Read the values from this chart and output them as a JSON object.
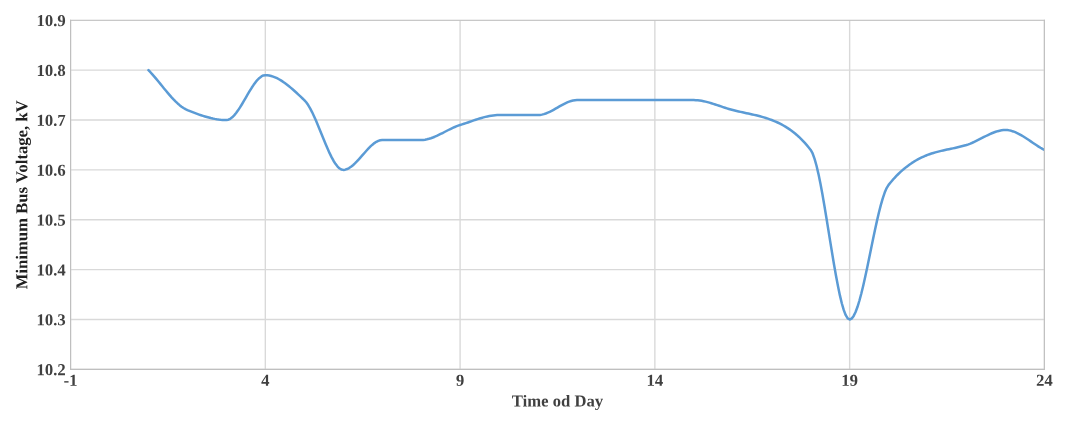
{
  "chart_data": {
    "type": "line",
    "xlabel": "Time od Day",
    "ylabel": "Minimum Bus Voltage, kV",
    "x": [
      1,
      2,
      3,
      4,
      5,
      6,
      7,
      8,
      9,
      10,
      11,
      12,
      13,
      14,
      15,
      16,
      17,
      18,
      19,
      20,
      21,
      22,
      23,
      24
    ],
    "series": [
      {
        "color": "#5b9bd5",
        "values": [
          10.8,
          10.72,
          10.7,
          10.79,
          10.74,
          10.6,
          10.66,
          10.66,
          10.69,
          10.71,
          10.71,
          10.74,
          10.74,
          10.74,
          10.74,
          10.72,
          10.7,
          10.64,
          10.3,
          10.57,
          10.63,
          10.65,
          10.68,
          10.64
        ]
      }
    ],
    "xlim": [
      -1,
      24
    ],
    "xticks": [
      -1,
      4,
      9,
      14,
      19,
      24
    ],
    "ylim": [
      10.2,
      10.9
    ],
    "yticks": [
      {
        "value": 10.2,
        "label": "10.2"
      },
      {
        "value": 10.3,
        "label": "10.3"
      },
      {
        "value": 10.4,
        "label": "10.4"
      },
      {
        "value": 10.5,
        "label": "10.5"
      },
      {
        "value": 10.6,
        "label": "10.6"
      },
      {
        "value": 10.7,
        "label": "10.7"
      },
      {
        "value": 10.8,
        "label": "10.8"
      },
      {
        "value": 10.9,
        "label": "10.9"
      }
    ],
    "grid": true,
    "marker": "none",
    "line_style": "solid"
  }
}
